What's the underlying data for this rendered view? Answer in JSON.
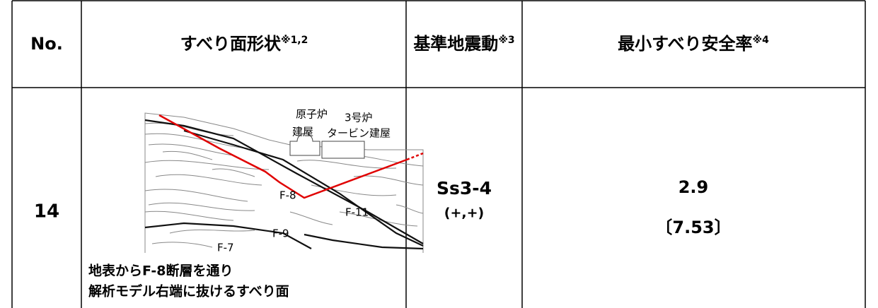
{
  "table": {
    "header": [
      {
        "text": "No."
      },
      {
        "text": "すべり面形状",
        "note": "※1,2"
      },
      {
        "text": "基準地震動",
        "note": "※3"
      },
      {
        "text": "最小すべり安全率",
        "note": "※4"
      }
    ],
    "rows": [
      {
        "no": "14",
        "figure": {
          "labels": [
            "原子炉",
            "建屋",
            "3号炉",
            "タービン建屋",
            "F-8",
            "F-11",
            "F-9",
            "F-7"
          ]
        },
        "description": [
          "地表からF-8断層を通り",
          "解析モデル右端に抜けるすべり面"
        ],
        "ground_motion": "Ss3-4",
        "ground_motion_sign": "(+,+)",
        "safety_factor": "2.9",
        "safety_factor_alt": "〔7.53〕"
      }
    ]
  }
}
